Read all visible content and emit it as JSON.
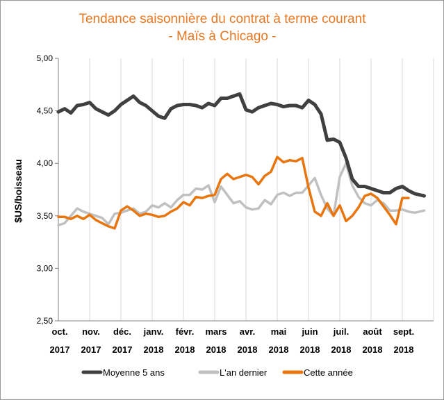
{
  "chart_data": {
    "type": "line",
    "title_line1": "Tendance saisonnière du contrat à terme courant",
    "title_line2": "- Maïs à Chicago -",
    "ylabel": "$US/boisseau",
    "ylim": [
      2.5,
      5.0
    ],
    "yticks": [
      "5,00",
      "4,50",
      "4,00",
      "3,50",
      "3,00",
      "2,50"
    ],
    "ytick_values": [
      5.0,
      4.5,
      4.0,
      3.5,
      3.0,
      2.5
    ],
    "categories": [
      [
        "oct.",
        "2017"
      ],
      [
        "nov.",
        "2017"
      ],
      [
        "déc.",
        "2017"
      ],
      [
        "janv.",
        "2018"
      ],
      [
        "févr.",
        "2018"
      ],
      [
        "mars",
        "2018"
      ],
      [
        "avr.",
        "2018"
      ],
      [
        "mai",
        "2018"
      ],
      [
        "juin",
        "2018"
      ],
      [
        "juil.",
        "2018"
      ],
      [
        "août",
        "2018"
      ],
      [
        "sept.",
        "2018"
      ]
    ],
    "grid": "vertical",
    "legend_position": "bottom",
    "series": [
      {
        "name": "Moyenne 5 ans",
        "color": "#404040",
        "x": [
          0,
          0.2,
          0.4,
          0.6,
          0.8,
          1,
          1.2,
          1.4,
          1.6,
          1.8,
          2,
          2.2,
          2.4,
          2.6,
          2.8,
          3,
          3.2,
          3.4,
          3.6,
          3.8,
          4,
          4.2,
          4.4,
          4.6,
          4.8,
          5,
          5.2,
          5.4,
          5.6,
          5.8,
          6,
          6.2,
          6.4,
          6.6,
          6.8,
          7,
          7.2,
          7.4,
          7.6,
          7.8,
          8,
          8.2,
          8.4,
          8.6,
          8.8,
          9,
          9.2,
          9.4,
          9.6,
          9.8,
          10,
          10.2,
          10.4,
          10.6,
          10.8,
          11,
          11.2,
          11.4,
          11.7
        ],
        "values": [
          4.49,
          4.52,
          4.48,
          4.55,
          4.56,
          4.58,
          4.52,
          4.49,
          4.46,
          4.5,
          4.56,
          4.6,
          4.64,
          4.58,
          4.55,
          4.5,
          4.45,
          4.43,
          4.52,
          4.55,
          4.56,
          4.56,
          4.55,
          4.53,
          4.57,
          4.55,
          4.62,
          4.62,
          4.64,
          4.66,
          4.51,
          4.49,
          4.53,
          4.55,
          4.57,
          4.56,
          4.54,
          4.55,
          4.55,
          4.53,
          4.6,
          4.56,
          4.47,
          4.22,
          4.23,
          4.2,
          4.05,
          3.85,
          3.78,
          3.78,
          3.76,
          3.74,
          3.72,
          3.72,
          3.76,
          3.78,
          3.74,
          3.71,
          3.69
        ]
      },
      {
        "name": "L'an dernier",
        "color": "#c0c0c0",
        "x": [
          0,
          0.2,
          0.4,
          0.6,
          0.8,
          1,
          1.2,
          1.4,
          1.6,
          1.8,
          2,
          2.2,
          2.4,
          2.6,
          2.8,
          3,
          3.2,
          3.4,
          3.6,
          3.8,
          4,
          4.2,
          4.4,
          4.6,
          4.8,
          5,
          5.2,
          5.4,
          5.6,
          5.8,
          6,
          6.2,
          6.4,
          6.6,
          6.8,
          7,
          7.2,
          7.4,
          7.6,
          7.8,
          8,
          8.2,
          8.4,
          8.6,
          8.8,
          9,
          9.2,
          9.4,
          9.6,
          9.8,
          10,
          10.2,
          10.4,
          10.6,
          10.8,
          11,
          11.2,
          11.4,
          11.7
        ],
        "values": [
          3.41,
          3.43,
          3.5,
          3.57,
          3.54,
          3.52,
          3.5,
          3.48,
          3.42,
          3.52,
          3.53,
          3.55,
          3.57,
          3.52,
          3.54,
          3.6,
          3.58,
          3.62,
          3.58,
          3.65,
          3.7,
          3.7,
          3.76,
          3.75,
          3.79,
          3.63,
          3.78,
          3.7,
          3.62,
          3.64,
          3.58,
          3.56,
          3.57,
          3.65,
          3.61,
          3.7,
          3.72,
          3.69,
          3.72,
          3.72,
          3.79,
          3.86,
          3.7,
          3.57,
          3.5,
          3.87,
          4.0,
          3.79,
          3.68,
          3.62,
          3.6,
          3.65,
          3.62,
          3.55,
          3.55,
          3.56,
          3.54,
          3.53,
          3.55
        ]
      },
      {
        "name": "Cette année",
        "color": "#e8750e",
        "x": [
          0,
          0.2,
          0.4,
          0.6,
          0.8,
          1,
          1.2,
          1.4,
          1.6,
          1.8,
          2,
          2.2,
          2.4,
          2.6,
          2.8,
          3,
          3.2,
          3.4,
          3.6,
          3.8,
          4,
          4.2,
          4.4,
          4.6,
          4.8,
          5,
          5.2,
          5.4,
          5.6,
          5.8,
          6,
          6.2,
          6.4,
          6.6,
          6.8,
          7,
          7.2,
          7.4,
          7.6,
          7.8,
          8,
          8.2,
          8.4,
          8.6,
          8.8,
          9,
          9.2,
          9.4,
          9.6,
          9.8,
          10,
          10.2,
          10.4,
          10.6,
          10.8,
          11,
          11.2
        ],
        "values": [
          3.49,
          3.49,
          3.47,
          3.5,
          3.47,
          3.51,
          3.46,
          3.43,
          3.4,
          3.38,
          3.55,
          3.59,
          3.55,
          3.5,
          3.52,
          3.51,
          3.49,
          3.5,
          3.54,
          3.57,
          3.63,
          3.6,
          3.68,
          3.67,
          3.69,
          3.7,
          3.85,
          3.9,
          3.85,
          3.87,
          3.89,
          3.87,
          3.8,
          3.88,
          3.92,
          4.06,
          4.01,
          4.03,
          4.02,
          4.05,
          3.77,
          3.54,
          3.5,
          3.62,
          3.5,
          3.6,
          3.45,
          3.5,
          3.58,
          3.69,
          3.71,
          3.67,
          3.59,
          3.51,
          3.42,
          3.67,
          3.67
        ]
      }
    ]
  }
}
